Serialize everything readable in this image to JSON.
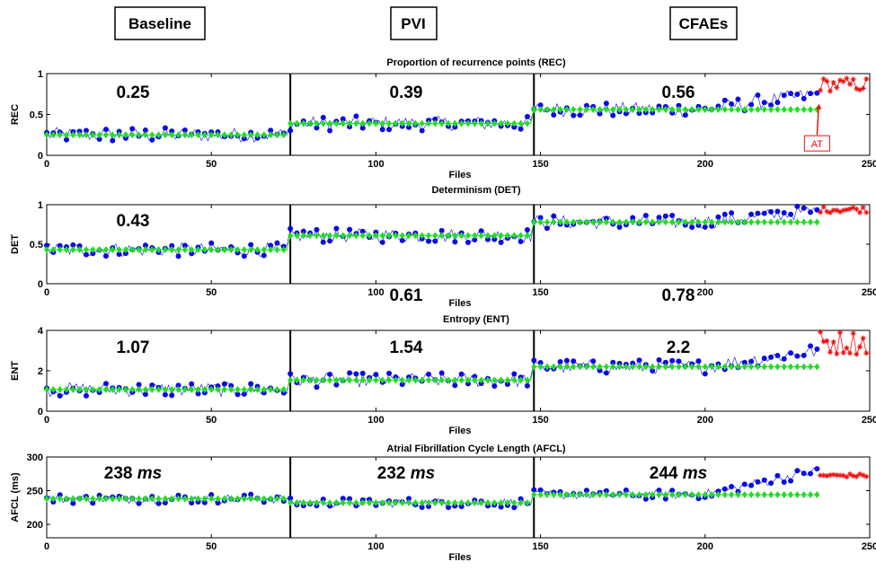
{
  "phases": [
    "Baseline",
    "PVI",
    "CFAEs"
  ],
  "colors": {
    "observed": "#0a0ae6",
    "mean": "#22dd22",
    "after_at": "#ee1111",
    "boundary": "#000000"
  },
  "boundaries": [
    74,
    148
  ],
  "at_index": 234,
  "chart_data": [
    {
      "type": "scatter",
      "title": "Proportion of recurrence points (REC)",
      "xlabel": "Files",
      "ylabel": "REC",
      "xlim": [
        0,
        250
      ],
      "ylim": [
        0,
        1
      ],
      "xticks": [
        0,
        50,
        100,
        150,
        200,
        250
      ],
      "yticks": [
        0,
        0.5,
        1
      ],
      "phase_means": [
        0.25,
        0.39,
        0.56
      ],
      "phase_mean_labels": [
        "0.25",
        "0.39",
        "0.56"
      ],
      "observed_summary": {
        "baseline_mean": 0.25,
        "pvi_mean": 0.39,
        "cfae_mean": 0.56,
        "cfae_end": 0.75
      },
      "after_at_range": [
        0.78,
        0.95
      ],
      "annotation": "AT"
    },
    {
      "type": "scatter",
      "title": "Determinism (DET)",
      "xlabel": "Files",
      "ylabel": "DET",
      "xlim": [
        0,
        250
      ],
      "ylim": [
        0,
        1
      ],
      "xticks": [
        0,
        50,
        100,
        150,
        200,
        250
      ],
      "yticks": [
        0,
        0.5,
        1
      ],
      "phase_means": [
        0.43,
        0.61,
        0.78
      ],
      "phase_mean_labels": [
        "0.43",
        "0.61",
        "0.78"
      ],
      "observed_summary": {
        "baseline_mean": 0.43,
        "pvi_mean": 0.61,
        "cfae_mean": 0.78,
        "cfae_end": 0.92
      },
      "after_at_range": [
        0.9,
        0.98
      ]
    },
    {
      "type": "scatter",
      "title": "Entropy (ENT)",
      "xlabel": "Files",
      "ylabel": "ENT",
      "xlim": [
        0,
        250
      ],
      "ylim": [
        0,
        4
      ],
      "xticks": [
        0,
        50,
        100,
        150,
        200,
        250
      ],
      "yticks": [
        0,
        2,
        4
      ],
      "phase_means": [
        1.07,
        1.54,
        2.2
      ],
      "phase_mean_labels": [
        "1.07",
        "1.54",
        "2.2"
      ],
      "observed_summary": {
        "baseline_mean": 1.07,
        "pvi_mean": 1.54,
        "cfae_mean": 2.2,
        "cfae_end": 3.0
      },
      "after_at_range": [
        2.8,
        4.0
      ]
    },
    {
      "type": "scatter",
      "title": "Atrial Fibrillation Cycle Length (AFCL)",
      "xlabel": "Files",
      "ylabel": "AFCL (ms)",
      "xlim": [
        0,
        250
      ],
      "ylim": [
        180,
        300
      ],
      "xticks": [
        0,
        50,
        100,
        150,
        200,
        250
      ],
      "yticks": [
        200,
        250,
        300
      ],
      "phase_means": [
        238,
        232,
        244
      ],
      "phase_mean_labels": [
        "238",
        "232",
        "244"
      ],
      "phase_mean_unit": "ms",
      "observed_summary": {
        "baseline_mean": 238,
        "pvi_mean": 232,
        "cfae_mean": 244,
        "cfae_end": 280
      },
      "after_at_range": [
        270,
        275
      ]
    }
  ]
}
